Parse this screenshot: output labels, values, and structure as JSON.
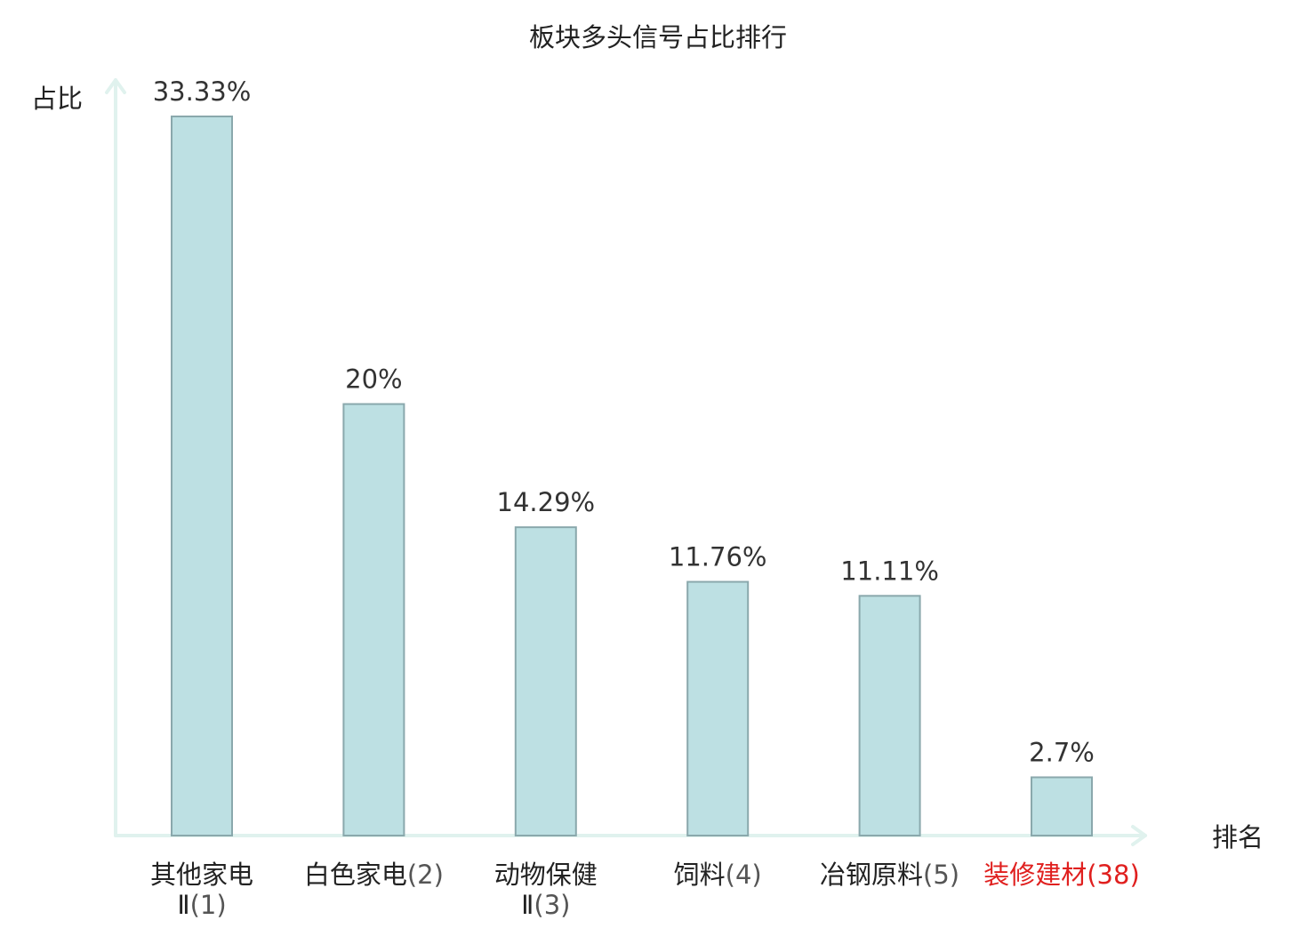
{
  "chart_data": {
    "type": "bar",
    "title": "板块多头信号占比排行",
    "ylabel": "占比",
    "xlabel": "排名",
    "categories": [
      {
        "name_lines": [
          "其他家电",
          "Ⅱ"
        ],
        "rank": "(1)",
        "highlight": false
      },
      {
        "name_lines": [
          "白色家电"
        ],
        "rank": "(2)",
        "highlight": false
      },
      {
        "name_lines": [
          "动物保健",
          "Ⅱ"
        ],
        "rank": "(3)",
        "highlight": false
      },
      {
        "name_lines": [
          "饲料"
        ],
        "rank": "(4)",
        "highlight": false
      },
      {
        "name_lines": [
          "冶钢原料"
        ],
        "rank": "(5)",
        "highlight": false
      },
      {
        "name_lines": [
          "装修建材"
        ],
        "rank": "(38)",
        "highlight": true
      }
    ],
    "values": [
      33.33,
      20,
      14.29,
      11.76,
      11.11,
      2.7
    ],
    "value_labels": [
      "33.33%",
      "20%",
      "14.29%",
      "11.76%",
      "11.11%",
      "2.7%"
    ],
    "ylim": [
      0,
      33.33
    ],
    "grid": false,
    "legend": "none"
  },
  "colors": {
    "bar_fill": "#bde0e3",
    "bar_stroke": "#8aa8ac",
    "axis": "#e0f2ee",
    "text": "#333333",
    "highlight": "#e0201f"
  }
}
